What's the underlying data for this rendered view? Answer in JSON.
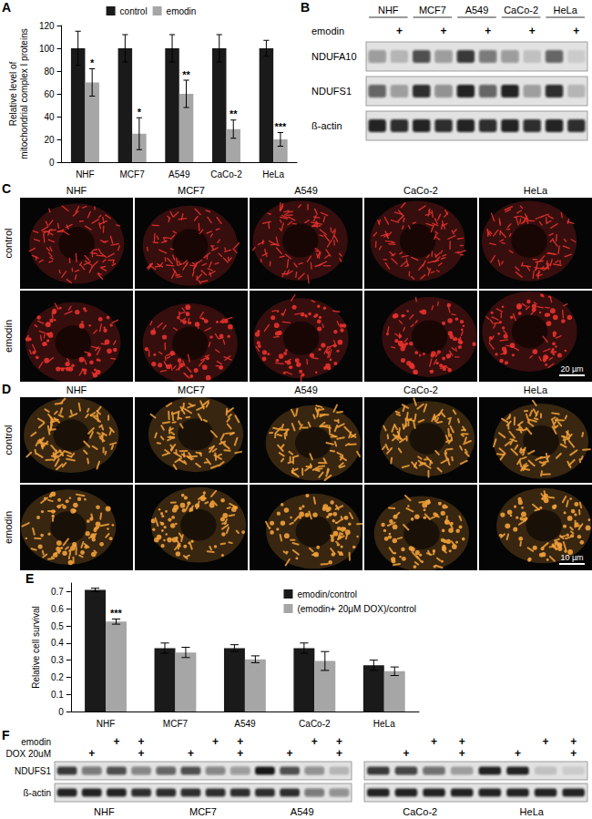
{
  "panel_labels": [
    "A",
    "B",
    "C",
    "D",
    "E",
    "F"
  ],
  "chart_data": [
    {
      "type": "bar",
      "ylabel": "Relative level of\nmitochondrial complex I proteins",
      "categories": [
        "NHF",
        "MCF7",
        "A549",
        "CaCo-2",
        "HeLa"
      ],
      "series": [
        {
          "name": "control",
          "color": "#1a1a1a",
          "values": [
            100,
            100,
            100,
            100,
            100
          ],
          "errors": [
            15,
            12,
            12,
            12,
            7
          ]
        },
        {
          "name": "emodin",
          "color": "#a6a6a6",
          "values": [
            70,
            25,
            60,
            29,
            20
          ],
          "errors": [
            12,
            14,
            12,
            8,
            6
          ],
          "significance": [
            "*",
            "*",
            "**",
            "**",
            "***"
          ]
        }
      ],
      "ylim": [
        0,
        120
      ],
      "yticks": [
        0,
        20,
        40,
        60,
        80,
        100,
        120
      ],
      "grid": false,
      "legend": "top"
    },
    {
      "type": "bar",
      "ylabel": "Relative cell survival",
      "categories": [
        "NHF",
        "MCF7",
        "A549",
        "CaCo-2",
        "HeLa"
      ],
      "series": [
        {
          "name": "emodin/control",
          "color": "#1a1a1a",
          "values": [
            0.71,
            0.37,
            0.37,
            0.37,
            0.27
          ],
          "errors": [
            0.01,
            0.03,
            0.02,
            0.03,
            0.03
          ]
        },
        {
          "name": "(emodin+ 20μM DOX)/control",
          "color": "#a6a6a6",
          "values": [
            0.525,
            0.345,
            0.305,
            0.295,
            0.235
          ],
          "errors": [
            0.015,
            0.03,
            0.02,
            0.055,
            0.025
          ],
          "significance": [
            "***",
            null,
            null,
            null,
            null
          ]
        }
      ],
      "ylim": [
        0,
        0.75
      ],
      "yticks": [
        0,
        0.1,
        0.2,
        0.3,
        0.4,
        0.5,
        0.6,
        0.7
      ],
      "grid": false,
      "legend": "upper right"
    }
  ],
  "blot_B": {
    "groups": [
      "NHF",
      "MCF7",
      "A549",
      "CaCo-2",
      "HeLa"
    ],
    "treatments": [
      "emodin"
    ],
    "signs": [
      [
        null,
        "+",
        null,
        "+",
        null,
        "+",
        null,
        "+",
        null,
        "+"
      ]
    ],
    "rows": [
      "NDUFA10",
      "NDUFS1",
      "ß-actin"
    ],
    "intensity": [
      [
        0.35,
        0.2,
        0.7,
        0.35,
        0.8,
        0.5,
        0.35,
        0.15,
        0.6,
        0.1
      ],
      [
        0.6,
        0.3,
        0.85,
        0.4,
        0.9,
        0.6,
        0.9,
        0.3,
        0.85,
        0.2
      ],
      [
        0.9,
        0.85,
        0.9,
        0.85,
        0.9,
        0.85,
        0.9,
        0.85,
        0.9,
        0.85
      ]
    ]
  },
  "micrographs": [
    {
      "columns": [
        "NHF",
        "MCF7",
        "A549",
        "CaCo-2",
        "HeLa"
      ],
      "rows": [
        "control",
        "emodin"
      ],
      "scale_bar": "20 µm",
      "color": "#e8322e"
    },
    {
      "columns": [
        "NHF",
        "MCF7",
        "A549",
        "CaCo-2",
        "HeLa"
      ],
      "rows": [
        "control",
        "emodin"
      ],
      "scale_bar": "10 µm",
      "color": "#f2a13a"
    }
  ],
  "blot_F": {
    "treatments": [
      "emodin",
      "DOX 20uM"
    ],
    "rows": [
      "NDUFS1",
      "ß-actin"
    ],
    "panels": [
      {
        "groups": [
          "NHF",
          "MCF7",
          "A549"
        ],
        "signs": [
          [
            null,
            null,
            "+",
            "+",
            null,
            null,
            "+",
            "+",
            null,
            null,
            "+",
            "+"
          ],
          [
            null,
            "+",
            null,
            "+",
            null,
            "+",
            null,
            "+",
            null,
            "+",
            null,
            "+"
          ]
        ],
        "intensity": [
          [
            0.8,
            0.5,
            0.7,
            0.45,
            0.6,
            0.7,
            0.45,
            0.35,
            0.95,
            0.7,
            0.4,
            0.2
          ],
          [
            0.9,
            0.9,
            0.9,
            0.85,
            0.85,
            0.85,
            0.85,
            0.85,
            0.85,
            0.85,
            0.5,
            0.4
          ]
        ]
      },
      {
        "groups": [
          "CaCo-2",
          "HeLa"
        ],
        "signs": [
          [
            null,
            null,
            "+",
            "+",
            null,
            null,
            "+",
            "+"
          ],
          [
            null,
            "+",
            null,
            "+",
            null,
            "+",
            null,
            "+"
          ]
        ],
        "intensity": [
          [
            0.8,
            0.75,
            0.55,
            0.3,
            0.9,
            0.9,
            0.15,
            0.1
          ],
          [
            0.9,
            0.9,
            0.9,
            0.9,
            0.9,
            0.9,
            0.9,
            0.9
          ]
        ]
      }
    ]
  }
}
